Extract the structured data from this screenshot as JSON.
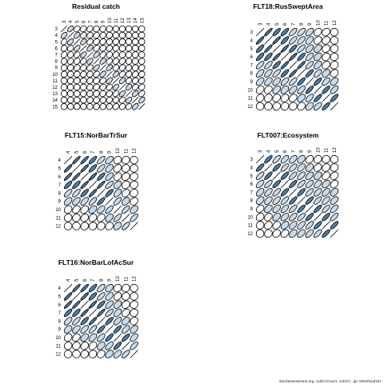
{
  "footer": "stockassessment.org,  codCCCvar4,  r10372 ,  git:  503cf91af157",
  "chart_data": [
    {
      "type": "correlation-ellipse-matrix",
      "title": "Residual catch",
      "labels": [
        "3",
        "4",
        "5",
        "6",
        "7",
        "8",
        "9",
        "10",
        "11",
        "12",
        "13",
        "14",
        "15"
      ],
      "corr": [
        [
          1,
          0.5,
          0.3,
          0.2,
          0.2,
          0.1,
          0.1,
          0.1,
          0,
          0,
          0,
          0,
          0
        ],
        [
          0.5,
          1,
          0.5,
          0.3,
          0.2,
          0.2,
          0.1,
          0.1,
          0.1,
          0,
          0,
          0,
          0
        ],
        [
          0.3,
          0.5,
          1,
          0.5,
          0.3,
          0.2,
          0.2,
          0.1,
          0.1,
          0.1,
          0,
          0,
          0
        ],
        [
          0.2,
          0.3,
          0.5,
          1,
          0.5,
          0.3,
          0.2,
          0.2,
          0.1,
          0.1,
          0.1,
          0,
          0
        ],
        [
          0.2,
          0.2,
          0.3,
          0.5,
          1,
          0.5,
          0.3,
          0.2,
          0.2,
          0.1,
          0.1,
          0.1,
          0
        ],
        [
          0.1,
          0.2,
          0.2,
          0.3,
          0.5,
          1,
          0.5,
          0.3,
          0.2,
          0.2,
          0.1,
          0.1,
          0.1
        ],
        [
          0.1,
          0.1,
          0.2,
          0.2,
          0.3,
          0.5,
          1,
          0.5,
          0.3,
          0.2,
          0.2,
          0.1,
          0.1
        ],
        [
          0.1,
          0.1,
          0.1,
          0.2,
          0.2,
          0.3,
          0.5,
          1,
          0.5,
          0.3,
          0.2,
          0.2,
          0.1
        ],
        [
          0,
          0.1,
          0.1,
          0.1,
          0.2,
          0.2,
          0.3,
          0.5,
          1,
          0.5,
          0.3,
          0.2,
          0.2
        ],
        [
          0,
          0,
          0.1,
          0.1,
          0.1,
          0.2,
          0.2,
          0.3,
          0.5,
          1,
          0.5,
          0.3,
          0.2
        ],
        [
          0,
          0,
          0,
          0.1,
          0.1,
          0.1,
          0.2,
          0.2,
          0.3,
          0.5,
          1,
          0.5,
          0.3
        ],
        [
          0,
          0,
          0,
          0,
          0.1,
          0.1,
          0.1,
          0.2,
          0.2,
          0.3,
          0.5,
          1,
          0.5
        ],
        [
          0,
          0,
          0,
          0,
          0,
          0.1,
          0.1,
          0.1,
          0.2,
          0.2,
          0.3,
          0.5,
          1
        ]
      ]
    },
    {
      "type": "correlation-ellipse-matrix",
      "title": "FLT18:RusSweptArea",
      "labels": [
        "3",
        "4",
        "5",
        "6",
        "7",
        "8",
        "9",
        "10",
        "11",
        "12"
      ],
      "corr": [
        [
          1,
          0.9,
          0.8,
          0.8,
          0.7,
          0.6,
          0.5,
          0.3,
          0.2,
          0
        ],
        [
          0.9,
          1,
          0.9,
          0.8,
          0.7,
          0.6,
          0.5,
          0.3,
          0.2,
          0
        ],
        [
          0.8,
          0.9,
          1,
          0.9,
          0.8,
          0.7,
          0.5,
          0.4,
          0.2,
          0.1
        ],
        [
          0.8,
          0.8,
          0.9,
          1,
          0.9,
          0.8,
          0.6,
          0.4,
          0.2,
          0.1
        ],
        [
          0.7,
          0.7,
          0.8,
          0.9,
          1,
          0.9,
          0.7,
          0.5,
          0.3,
          0.1
        ],
        [
          0.6,
          0.6,
          0.7,
          0.8,
          0.9,
          1,
          0.8,
          0.6,
          0.4,
          0.2
        ],
        [
          0.5,
          0.5,
          0.5,
          0.6,
          0.7,
          0.8,
          1,
          0.8,
          0.6,
          0.4
        ],
        [
          0.3,
          0.3,
          0.4,
          0.4,
          0.5,
          0.6,
          0.8,
          1,
          0.8,
          0.6
        ],
        [
          0.2,
          0.2,
          0.2,
          0.2,
          0.3,
          0.4,
          0.6,
          0.8,
          1,
          0.8
        ],
        [
          0,
          0,
          0.1,
          0.1,
          0.1,
          0.2,
          0.4,
          0.6,
          0.8,
          1
        ]
      ]
    },
    {
      "type": "correlation-ellipse-matrix",
      "title": "FLT15:NorBarTrSur",
      "labels": [
        "4",
        "5",
        "6",
        "7",
        "8",
        "9",
        "10",
        "11",
        "12"
      ],
      "corr": [
        [
          1,
          0.9,
          0.9,
          0.8,
          0.7,
          0.5,
          0.2,
          0.1,
          0
        ],
        [
          0.9,
          1,
          0.9,
          0.8,
          0.7,
          0.5,
          0.3,
          0.1,
          0
        ],
        [
          0.9,
          0.9,
          1,
          0.9,
          0.8,
          0.6,
          0.3,
          0.2,
          0.1
        ],
        [
          0.8,
          0.8,
          0.9,
          1,
          0.9,
          0.7,
          0.4,
          0.2,
          0.1
        ],
        [
          0.7,
          0.7,
          0.8,
          0.9,
          1,
          0.8,
          0.5,
          0.3,
          0.1
        ],
        [
          0.5,
          0.5,
          0.6,
          0.7,
          0.8,
          1,
          0.7,
          0.4,
          0.2
        ],
        [
          0.2,
          0.3,
          0.3,
          0.4,
          0.5,
          0.7,
          1,
          0.7,
          0.4
        ],
        [
          0.1,
          0.1,
          0.2,
          0.2,
          0.3,
          0.4,
          0.7,
          1,
          0.7
        ],
        [
          0,
          0,
          0.1,
          0.1,
          0.1,
          0.2,
          0.4,
          0.7,
          1
        ]
      ]
    },
    {
      "type": "correlation-ellipse-matrix",
      "title": "FLT007:Ecosystem",
      "labels": [
        "3",
        "4",
        "5",
        "6",
        "7",
        "8",
        "9",
        "10",
        "11",
        "12"
      ],
      "corr": [
        [
          1,
          0.8,
          0.7,
          0.6,
          0.5,
          0.4,
          0.3,
          0.2,
          0.1,
          0
        ],
        [
          0.8,
          1,
          0.8,
          0.7,
          0.6,
          0.5,
          0.4,
          0.3,
          0.2,
          0.1
        ],
        [
          0.7,
          0.8,
          1,
          0.8,
          0.7,
          0.6,
          0.5,
          0.4,
          0.3,
          0.2
        ],
        [
          0.6,
          0.7,
          0.8,
          1,
          0.8,
          0.7,
          0.6,
          0.5,
          0.4,
          0.3
        ],
        [
          0.5,
          0.6,
          0.7,
          0.8,
          1,
          0.8,
          0.7,
          0.6,
          0.5,
          0.4
        ],
        [
          0.4,
          0.5,
          0.6,
          0.7,
          0.8,
          1,
          0.8,
          0.7,
          0.6,
          0.5
        ],
        [
          0.3,
          0.4,
          0.5,
          0.6,
          0.7,
          0.8,
          1,
          0.8,
          0.7,
          0.6
        ],
        [
          0.2,
          0.3,
          0.4,
          0.5,
          0.6,
          0.7,
          0.8,
          1,
          0.8,
          0.7
        ],
        [
          0.1,
          0.2,
          0.3,
          0.4,
          0.5,
          0.6,
          0.7,
          0.8,
          1,
          0.8
        ],
        [
          0,
          0.1,
          0.2,
          0.3,
          0.4,
          0.5,
          0.6,
          0.7,
          0.8,
          1
        ]
      ]
    },
    {
      "type": "correlation-ellipse-matrix",
      "title": "FLT16:NorBarLofAcSur",
      "labels": [
        "4",
        "5",
        "6",
        "7",
        "8",
        "9",
        "10",
        "11",
        "12"
      ],
      "corr": [
        [
          1,
          0.9,
          0.9,
          0.8,
          0.6,
          0.4,
          0.2,
          0.1,
          0
        ],
        [
          0.9,
          1,
          0.9,
          0.8,
          0.7,
          0.5,
          0.3,
          0.1,
          0
        ],
        [
          0.9,
          0.9,
          1,
          0.9,
          0.8,
          0.6,
          0.4,
          0.2,
          0.1
        ],
        [
          0.8,
          0.8,
          0.9,
          1,
          0.9,
          0.7,
          0.5,
          0.3,
          0.1
        ],
        [
          0.6,
          0.7,
          0.8,
          0.9,
          1,
          0.8,
          0.6,
          0.4,
          0.2
        ],
        [
          0.4,
          0.5,
          0.6,
          0.7,
          0.8,
          1,
          0.8,
          0.6,
          0.4
        ],
        [
          0.2,
          0.3,
          0.4,
          0.5,
          0.6,
          0.8,
          1,
          0.8,
          0.5
        ],
        [
          0.1,
          0.1,
          0.2,
          0.3,
          0.4,
          0.6,
          0.8,
          1,
          0.7
        ],
        [
          0,
          0,
          0.1,
          0.1,
          0.2,
          0.4,
          0.5,
          0.7,
          1
        ]
      ]
    }
  ],
  "colors": {
    "fill_strong": "#4a7fae",
    "fill_light": "#c6dcee",
    "stroke": "#000000",
    "background": "#ffffff"
  }
}
